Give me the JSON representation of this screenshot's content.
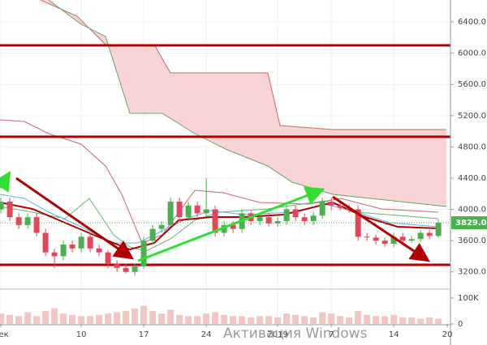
{
  "chart_data": {
    "type": "candlestick",
    "x": [
      1,
      2,
      3,
      4,
      5,
      6,
      7,
      8,
      9,
      10,
      11,
      12,
      13,
      14,
      15,
      16,
      17,
      18,
      19,
      20,
      21,
      22,
      23,
      24,
      25,
      26,
      27,
      28,
      29,
      30,
      31,
      32,
      33,
      34,
      35,
      36,
      37,
      38,
      39,
      40,
      41,
      42,
      43,
      44,
      45,
      46,
      47,
      48,
      49,
      50
    ],
    "open": [
      4000,
      4100,
      3900,
      3800,
      3900,
      3700,
      3450,
      3400,
      3550,
      3500,
      3650,
      3500,
      3450,
      3300,
      3250,
      3200,
      3270,
      3600,
      3750,
      3800,
      4100,
      3900,
      4050,
      3950,
      4000,
      3700,
      3800,
      3750,
      3950,
      3850,
      3900,
      3820,
      3850,
      4000,
      3900,
      3850,
      3920,
      4100,
      4050,
      4020,
      4000,
      3650,
      3640,
      3600,
      3560,
      3650,
      3600,
      3620,
      3700,
      3660
    ],
    "high": [
      4150,
      4150,
      3950,
      3950,
      3950,
      3750,
      3500,
      3600,
      3600,
      3700,
      3700,
      3550,
      3480,
      3350,
      3300,
      3300,
      3650,
      3800,
      3850,
      4150,
      4150,
      4100,
      4100,
      4400,
      4050,
      3850,
      3850,
      4000,
      3980,
      3950,
      3950,
      3900,
      4050,
      4050,
      3950,
      3970,
      4150,
      4150,
      4100,
      4060,
      4050,
      3700,
      3680,
      3640,
      3700,
      3700,
      3660,
      3740,
      3740,
      3870
    ],
    "low": [
      3950,
      3850,
      3750,
      3750,
      3650,
      3400,
      3250,
      3350,
      3450,
      3450,
      3450,
      3400,
      3250,
      3200,
      3180,
      3150,
      3240,
      3550,
      3700,
      3780,
      3850,
      3850,
      3900,
      3900,
      3650,
      3650,
      3700,
      3700,
      3800,
      3800,
      3780,
      3780,
      3800,
      3850,
      3800,
      3800,
      3880,
      3990,
      3990,
      3960,
      3600,
      3600,
      3550,
      3520,
      3520,
      3560,
      3570,
      3590,
      3620,
      3640
    ],
    "close": [
      4100,
      3900,
      3800,
      3900,
      3700,
      3450,
      3400,
      3550,
      3500,
      3650,
      3500,
      3450,
      3300,
      3250,
      3200,
      3270,
      3600,
      3750,
      3800,
      4100,
      3900,
      4050,
      3950,
      4000,
      3700,
      3800,
      3750,
      3950,
      3850,
      3900,
      3820,
      3850,
      4000,
      3900,
      3850,
      3920,
      4100,
      4050,
      4020,
      4000,
      3650,
      3640,
      3600,
      3560,
      3650,
      3600,
      3620,
      3700,
      3660,
      3829
    ],
    "up_color": "#4caf50",
    "down_color": "#e0475a",
    "xlim": [
      0.9,
      51.35
    ],
    "xticks": [
      {
        "value": 1,
        "label": "дек"
      },
      10,
      17,
      24,
      {
        "value": 32,
        "label": "2019"
      },
      {
        "value": 38,
        "label": "7"
      },
      {
        "value": 45,
        "label": "14"
      },
      {
        "value": 51,
        "label": "20"
      }
    ],
    "ylim": [
      2990,
      6680
    ],
    "yticks": [
      {
        "value": 3200,
        "label": "3200.0"
      },
      {
        "value": 3600,
        "label": "3600.0"
      },
      {
        "value": 4000,
        "label": "4000.0"
      },
      {
        "value": 4400,
        "label": "4400.0"
      },
      {
        "value": 4800,
        "label": "4800.0"
      },
      {
        "value": 5200,
        "label": "5200.0"
      },
      {
        "value": 5600,
        "label": "5600.0"
      },
      {
        "value": 6000,
        "label": "6000.0"
      },
      {
        "value": 6400,
        "label": "6400.0"
      }
    ],
    "last_price": {
      "value": 3829,
      "label": "3829.0"
    },
    "levels": [
      6100,
      4930,
      3290
    ],
    "level_color": "#b00000",
    "volume": {
      "values": [
        40000,
        35000,
        30000,
        45000,
        30000,
        50000,
        60000,
        40000,
        35000,
        30000,
        30000,
        35000,
        40000,
        45000,
        50000,
        60000,
        70000,
        50000,
        40000,
        55000,
        35000,
        30000,
        30000,
        40000,
        45000,
        35000,
        30000,
        30000,
        25000,
        30000,
        30000,
        25000,
        40000,
        35000,
        30000,
        25000,
        45000,
        40000,
        30000,
        25000,
        50000,
        35000,
        30000,
        30000,
        35000,
        25000,
        25000,
        20000,
        25000,
        20000
      ],
      "ylim": [
        0,
        131000
      ],
      "yticks": [
        {
          "value": 100000,
          "label": "100K"
        },
        0
      ],
      "color": "#f2c6c2"
    },
    "watermark": "Активация Windows"
  }
}
